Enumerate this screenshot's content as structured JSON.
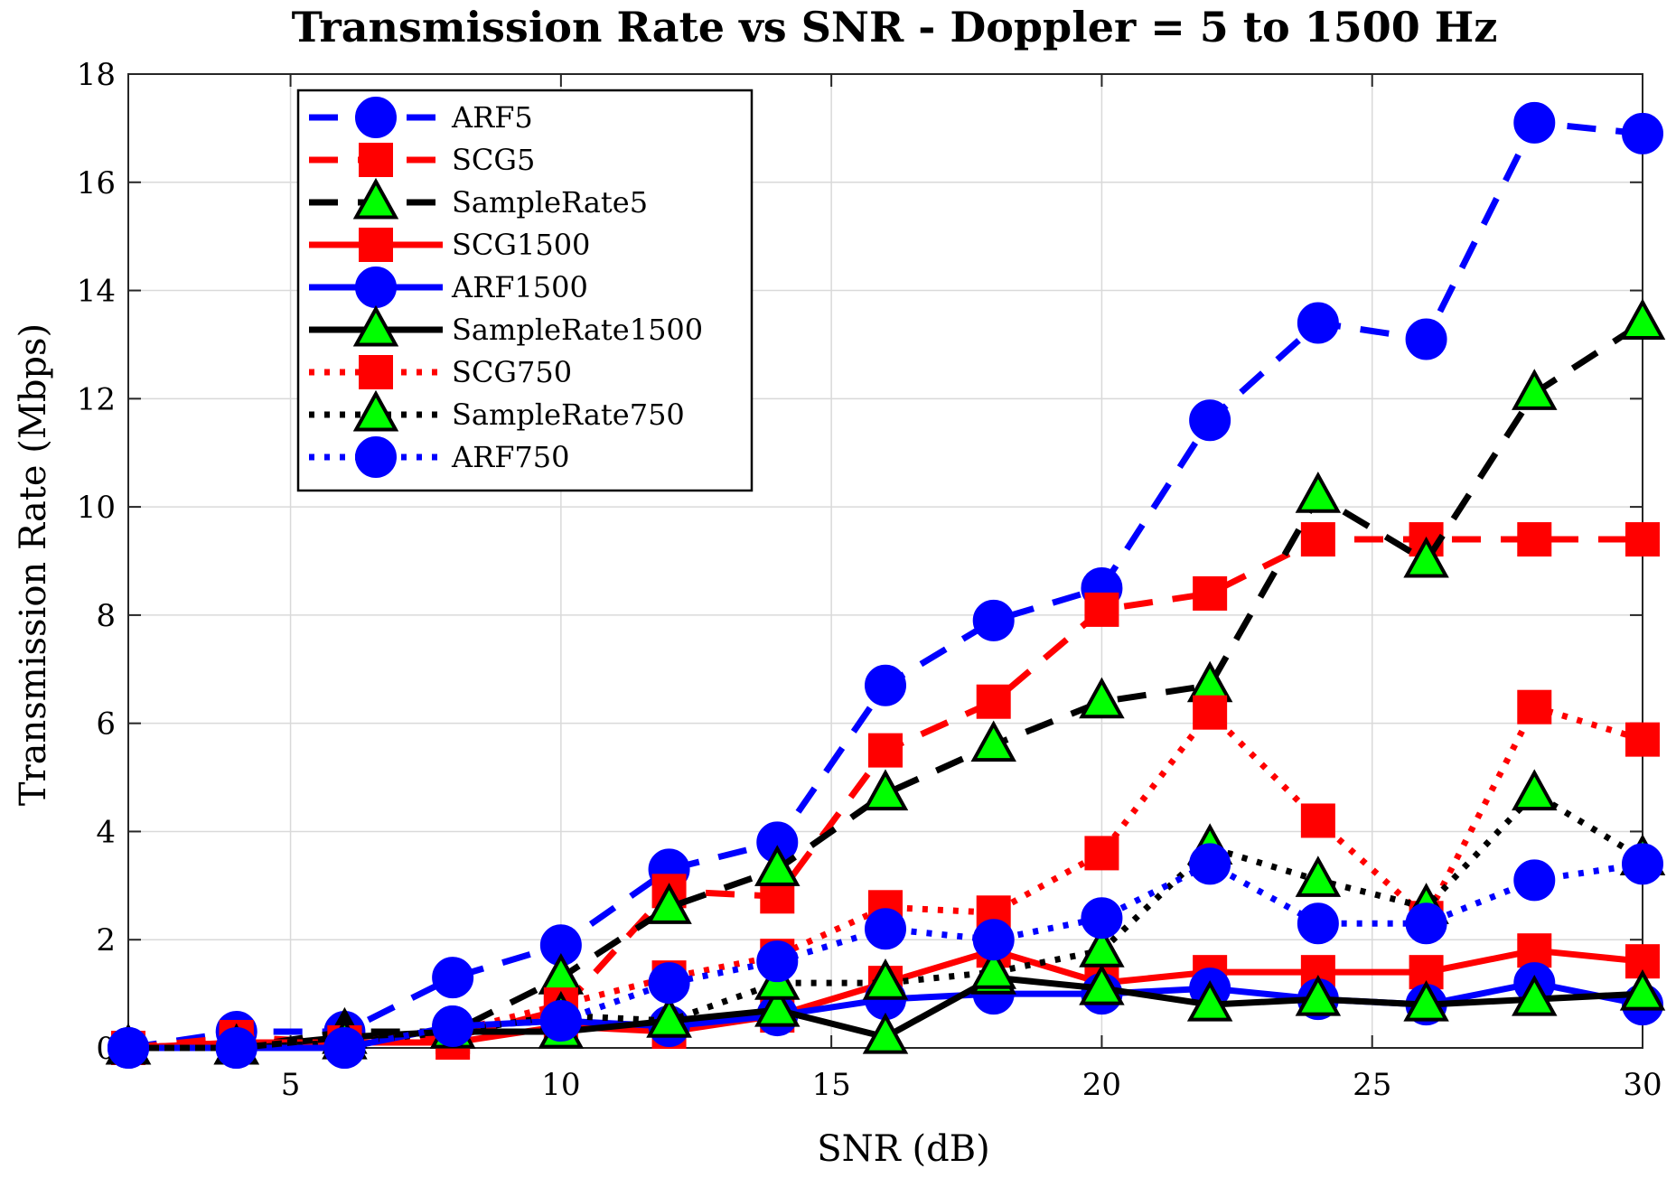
{
  "chart_data": {
    "type": "line",
    "title": "Transmission Rate vs SNR - Doppler = 5 to 1500 Hz",
    "xlabel": "SNR (dB)",
    "ylabel": "Transmission Rate (Mbps)",
    "xlim": [
      2,
      30
    ],
    "ylim": [
      0,
      18
    ],
    "xticks": [
      5,
      10,
      15,
      20,
      25,
      30
    ],
    "yticks": [
      0,
      2,
      4,
      6,
      8,
      10,
      12,
      14,
      16,
      18
    ],
    "grid": true,
    "legend_position": "top-left",
    "x": [
      2,
      4,
      6,
      8,
      10,
      12,
      14,
      16,
      18,
      20,
      22,
      24,
      26,
      28,
      30
    ],
    "series": [
      {
        "name": "ARF5",
        "color": "#0000ff",
        "line": "dashed",
        "marker": "circle",
        "marker_fill": "#0000ff",
        "values": [
          0,
          0.3,
          0.3,
          1.3,
          1.9,
          3.3,
          3.8,
          6.7,
          7.9,
          8.5,
          11.6,
          13.4,
          13.1,
          17.1,
          16.9
        ]
      },
      {
        "name": "SCG5",
        "color": "#ff0000",
        "line": "dashed",
        "marker": "square",
        "marker_fill": "#ff0000",
        "values": [
          0,
          0.2,
          0.1,
          0.2,
          0.7,
          2.9,
          2.8,
          5.5,
          6.4,
          8.1,
          8.4,
          9.4,
          9.4,
          9.4,
          9.4
        ]
      },
      {
        "name": "SampleRate5",
        "color": "#000000",
        "line": "dashed",
        "marker": "triangle",
        "marker_fill": "#00ff00",
        "values": [
          0,
          0,
          0.3,
          0.3,
          1.3,
          2.6,
          3.3,
          4.7,
          5.6,
          6.4,
          6.7,
          10.2,
          9.0,
          12.1,
          13.4
        ]
      },
      {
        "name": "SCG1500",
        "color": "#ff0000",
        "line": "solid",
        "marker": "square",
        "marker_fill": "#ff0000",
        "values": [
          0,
          0.1,
          0.1,
          0.1,
          0.4,
          0.3,
          0.6,
          1.2,
          1.8,
          1.2,
          1.4,
          1.4,
          1.4,
          1.8,
          1.6
        ]
      },
      {
        "name": "ARF1500",
        "color": "#0000ff",
        "line": "solid",
        "marker": "circle",
        "marker_fill": "#0000ff",
        "values": [
          0,
          0,
          0,
          0.4,
          0.5,
          0.4,
          0.6,
          0.9,
          1.0,
          1.0,
          1.1,
          0.9,
          0.8,
          1.2,
          0.8
        ]
      },
      {
        "name": "SampleRate1500",
        "color": "#000000",
        "line": "solid",
        "marker": "triangle",
        "marker_fill": "#00ff00",
        "values": [
          0,
          0,
          0.2,
          0.3,
          0.3,
          0.5,
          0.7,
          0.2,
          1.3,
          1.1,
          0.8,
          0.9,
          0.8,
          0.9,
          1.0
        ]
      },
      {
        "name": "SCG750",
        "color": "#ff0000",
        "line": "dotted",
        "marker": "square",
        "marker_fill": "#ff0000",
        "values": [
          0,
          0.1,
          0.1,
          0.3,
          0.8,
          1.3,
          1.7,
          2.6,
          2.5,
          3.6,
          6.2,
          4.2,
          2.4,
          6.3,
          5.7
        ]
      },
      {
        "name": "SampleRate750",
        "color": "#000000",
        "line": "dotted",
        "marker": "triangle",
        "marker_fill": "#00ff00",
        "values": [
          0,
          0,
          0.1,
          0.3,
          0.6,
          0.5,
          1.2,
          1.2,
          1.4,
          1.8,
          3.7,
          3.1,
          2.6,
          4.7,
          3.5
        ]
      },
      {
        "name": "ARF750",
        "color": "#0000ff",
        "line": "dotted",
        "marker": "circle",
        "marker_fill": "#0000ff",
        "values": [
          0,
          0,
          0,
          0.4,
          0.5,
          1.2,
          1.6,
          2.2,
          2.0,
          2.4,
          3.4,
          2.3,
          2.3,
          3.1,
          3.4
        ]
      }
    ]
  }
}
